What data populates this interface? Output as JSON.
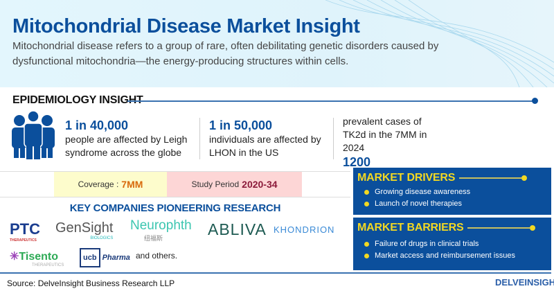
{
  "header": {
    "title": "Mitochondrial Disease Market Insight",
    "description": "Mitochondrial disease refers to a group of rare, often debilitating genetic disorders caused by dysfunctional mitochondria—the energy-producing structures within cells."
  },
  "epidemiology": {
    "heading": "EPIDEMIOLOGY INSIGHT",
    "stats": [
      {
        "value": "1 in 40,000",
        "text": "people are affected by Leigh syndrome across the globe"
      },
      {
        "value": "1 in 50,000",
        "text": "individuals are affected by LHON in the US"
      },
      {
        "text": "prevalent cases of TK2d in the 7MM in 2024",
        "value": "1200"
      }
    ]
  },
  "coverage": {
    "label": "Coverage :",
    "value": "7MM"
  },
  "study_period": {
    "label": "Study Period",
    "value": "2020-34"
  },
  "companies": {
    "heading": "KEY COMPANIES PIONEERING RESEARCH",
    "logos": [
      {
        "name": "PTC",
        "sub": "THERAPEUTICS"
      },
      {
        "name": "GenSight",
        "sub": "BIOLOGICS"
      },
      {
        "name": "Neurophth",
        "sub": "纽福斯"
      },
      {
        "name": "ABLIVA"
      },
      {
        "name": "KHONDRION"
      },
      {
        "name": "Tisento",
        "sub": "THERAPEUTICS"
      },
      {
        "name": "ucb",
        "sub": "Pharma"
      }
    ],
    "others": "and others."
  },
  "drivers": {
    "heading": "MARKET DRIVERS",
    "items": [
      "Growing disease awareness",
      "Launch of novel therapies"
    ]
  },
  "barriers": {
    "heading": "MARKET BARRIERS",
    "items": [
      "Failure of drugs in clinical trials",
      "Market access and reimbursement issues"
    ]
  },
  "footer": {
    "source": "Source: DelveInsight Business Research LLP",
    "brand": "DELVEINSIGHT"
  },
  "colors": {
    "primary": "#0b4f9c",
    "accent": "#f2d822",
    "coverage_bg": "#fdfccc",
    "period_bg": "#fdd6d6"
  }
}
